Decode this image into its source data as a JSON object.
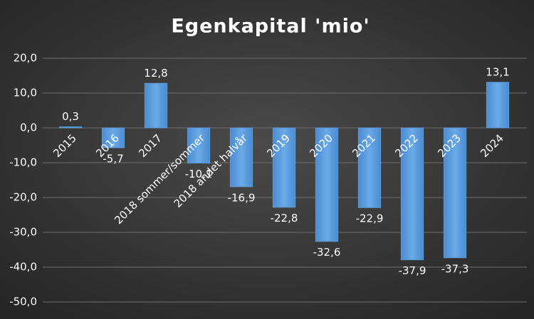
{
  "chart_data": {
    "type": "bar",
    "title": "Egenkapital 'mio'",
    "categories": [
      "2015",
      "2016",
      "2017",
      "2018 sommer/sommer",
      "2018 andet halvår",
      "2019",
      "2020",
      "2021",
      "2022",
      "2023",
      "2024"
    ],
    "values": [
      0.3,
      -5.7,
      12.8,
      -10.1,
      -16.9,
      -22.8,
      -32.6,
      -22.9,
      -37.9,
      -37.3,
      13.1
    ],
    "value_labels": [
      "0,3",
      "-5,7",
      "12,8",
      "-10,1",
      "-16,9",
      "-22,8",
      "-32,6",
      "-22,9",
      "-37,9",
      "-37,3",
      "13,1"
    ],
    "color": "#5b9bd5",
    "ylim": [
      -50,
      20
    ],
    "yticks": [
      {
        "value": -50,
        "label": "-50,0"
      },
      {
        "value": -40,
        "label": "-40,0"
      },
      {
        "value": -30,
        "label": "-30,0"
      },
      {
        "value": -20,
        "label": "-20,0"
      },
      {
        "value": -10,
        "label": "-10,0"
      },
      {
        "value": 0,
        "label": "0,0"
      },
      {
        "value": 10,
        "label": "10,0"
      },
      {
        "value": 20,
        "label": "20,0"
      }
    ],
    "grid": true
  }
}
